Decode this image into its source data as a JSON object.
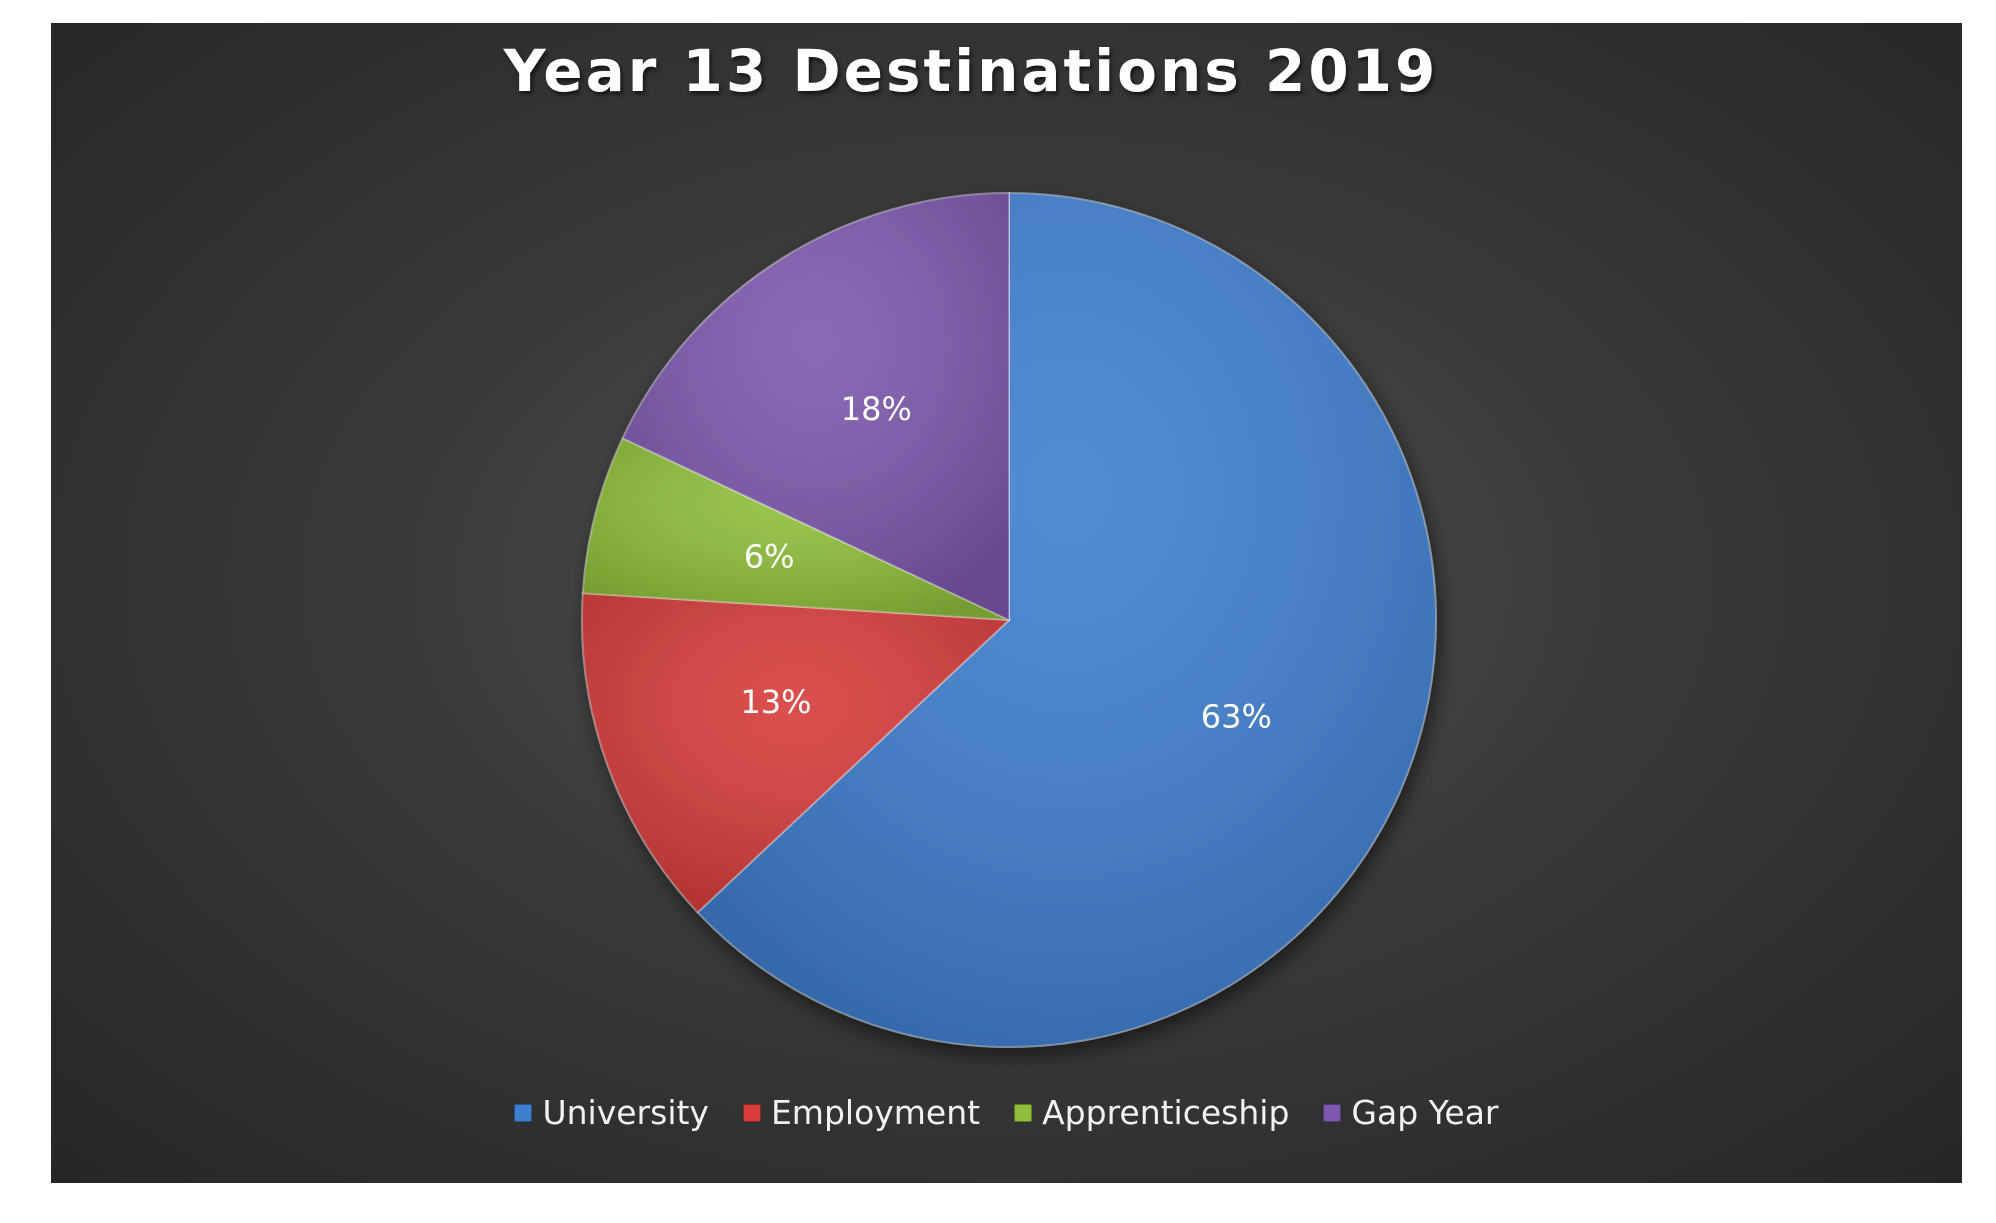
{
  "chart_data": {
    "type": "pie",
    "title": "Year 13 Destinations 2019",
    "categories": [
      "University",
      "Employment",
      "Apprenticeship",
      "Gap Year"
    ],
    "values": [
      63,
      13,
      6,
      18
    ],
    "labels": [
      "63%",
      "13%",
      "6%",
      "18%"
    ],
    "colors": [
      "#3f7fd0",
      "#d63c3a",
      "#8fbf3a",
      "#7d58ae"
    ],
    "start_angle_deg": 0,
    "direction": "clockwise",
    "legend_position": "bottom"
  }
}
